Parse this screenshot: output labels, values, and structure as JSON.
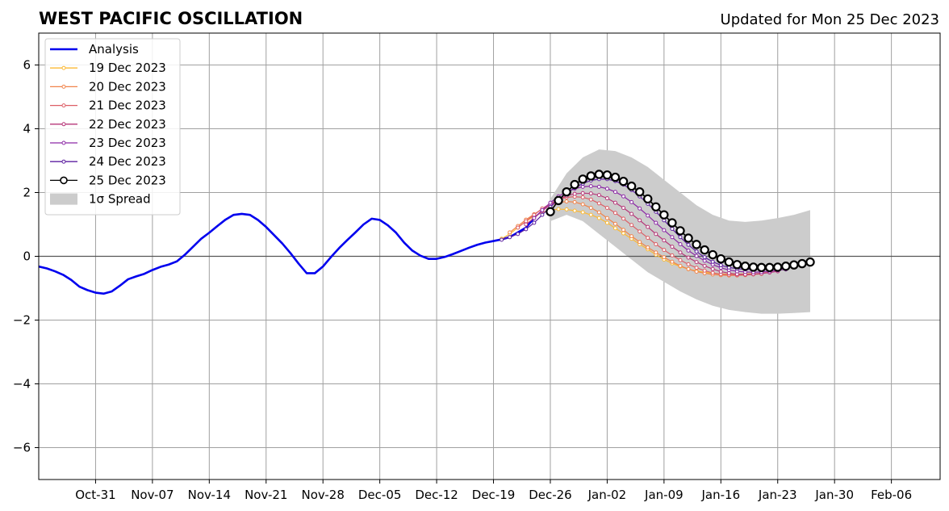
{
  "chart_data": {
    "type": "line",
    "title": "WEST PACIFIC OSCILLATION",
    "subtitle": "Updated for Mon 25 Dec 2023",
    "xlabel": "",
    "ylabel": "",
    "xlim": [
      "2023-10-24",
      "2024-02-12"
    ],
    "ylim": [
      -7,
      7
    ],
    "yticks": [
      -6,
      -4,
      -2,
      0,
      2,
      4,
      6
    ],
    "ytick_labels": [
      "−6",
      "−4",
      "−2",
      "0",
      "2",
      "4",
      "6"
    ],
    "xticks": [
      "2023-10-31",
      "2023-11-07",
      "2023-11-14",
      "2023-11-21",
      "2023-11-28",
      "2023-12-05",
      "2023-12-12",
      "2023-12-19",
      "2023-12-26",
      "2024-01-02",
      "2024-01-09",
      "2024-01-16",
      "2024-01-23",
      "2024-01-30",
      "2024-02-06"
    ],
    "xtick_labels": [
      "Oct-31",
      "Nov-07",
      "Nov-14",
      "Nov-21",
      "Nov-28",
      "Dec-05",
      "Dec-12",
      "Dec-19",
      "Dec-26",
      "Jan-02",
      "Jan-09",
      "Jan-16",
      "Jan-23",
      "Jan-30",
      "Feb-06"
    ],
    "grid": true,
    "zero_line": true,
    "legend_position": "upper-left",
    "analysis": {
      "name": "Analysis",
      "color": "#0000ee",
      "x": [
        "2023-10-26",
        "2023-10-28",
        "2023-10-30",
        "2023-11-01",
        "2023-11-03",
        "2023-11-05",
        "2023-11-07",
        "2023-11-09",
        "2023-11-11",
        "2023-11-13",
        "2023-11-15",
        "2023-11-17",
        "2023-11-19",
        "2023-11-21",
        "2023-11-23",
        "2023-11-25",
        "2023-11-27",
        "2023-11-29",
        "2023-12-01",
        "2023-12-03",
        "2023-12-05",
        "2023-12-07",
        "2023-12-09",
        "2023-12-11",
        "2023-12-13",
        "2023-12-15",
        "2023-12-17",
        "2023-12-19",
        "2023-12-21",
        "2023-12-23",
        "2023-12-25"
      ],
      "y": [
        -0.35,
        -0.6,
        -1.0,
        -1.15,
        -1.1,
        -0.7,
        -0.55,
        -0.3,
        -0.15,
        0.3,
        0.75,
        1.15,
        1.35,
        1.3,
        0.85,
        0.3,
        -0.25,
        -0.55,
        -0.3,
        0.3,
        0.95,
        1.18,
        0.85,
        0.25,
        -0.1,
        -0.05,
        0.2,
        0.4,
        0.5,
        0.8,
        1.2
      ],
      "dense_x": [
        "2023-10-24",
        "2023-10-25",
        "2023-10-26",
        "2023-10-27",
        "2023-10-28",
        "2023-10-29",
        "2023-10-30",
        "2023-10-31",
        "2023-11-01",
        "2023-11-02",
        "2023-11-03",
        "2023-11-04",
        "2023-11-05",
        "2023-11-06",
        "2023-11-07",
        "2023-11-08",
        "2023-11-09",
        "2023-11-10",
        "2023-11-11",
        "2023-11-12",
        "2023-11-13",
        "2023-11-14",
        "2023-11-15",
        "2023-11-16",
        "2023-11-17",
        "2023-11-18",
        "2023-11-19",
        "2023-11-20",
        "2023-11-21",
        "2023-11-22",
        "2023-11-23",
        "2023-11-24",
        "2023-11-25",
        "2023-11-26",
        "2023-11-27",
        "2023-11-28",
        "2023-11-29",
        "2023-11-30",
        "2023-12-01",
        "2023-12-02",
        "2023-12-03",
        "2023-12-04",
        "2023-12-05",
        "2023-12-06",
        "2023-12-07",
        "2023-12-08",
        "2023-12-09",
        "2023-12-10",
        "2023-12-11",
        "2023-12-12",
        "2023-12-13",
        "2023-12-14",
        "2023-12-15",
        "2023-12-16",
        "2023-12-17",
        "2023-12-18",
        "2023-12-19",
        "2023-12-20",
        "2023-12-21",
        "2023-12-22",
        "2023-12-23",
        "2023-12-24"
      ],
      "dense_y": [
        -0.32,
        -0.38,
        -0.47,
        -0.58,
        -0.74,
        -0.95,
        -1.06,
        -1.14,
        -1.17,
        -1.1,
        -0.92,
        -0.72,
        -0.63,
        -0.55,
        -0.43,
        -0.33,
        -0.26,
        -0.16,
        0.05,
        0.3,
        0.55,
        0.74,
        0.95,
        1.15,
        1.3,
        1.33,
        1.3,
        1.14,
        0.92,
        0.66,
        0.4,
        0.1,
        -0.23,
        -0.53,
        -0.53,
        -0.32,
        -0.02,
        0.26,
        0.51,
        0.75,
        1.0,
        1.18,
        1.14,
        0.97,
        0.74,
        0.43,
        0.18,
        0.02,
        -0.08,
        -0.08,
        -0.02,
        0.07,
        0.17,
        0.27,
        0.36,
        0.43,
        0.48,
        0.53,
        0.6,
        0.75,
        0.9,
        1.2
      ]
    },
    "forecasts": [
      {
        "name": "19 Dec 2023",
        "color": "#fbb935",
        "x": [
          "2023-12-20",
          "2023-12-21",
          "2023-12-22",
          "2023-12-23",
          "2023-12-24",
          "2023-12-25",
          "2023-12-26",
          "2023-12-27",
          "2023-12-28",
          "2023-12-29",
          "2023-12-30",
          "2023-12-31",
          "2024-01-01",
          "2024-01-02",
          "2024-01-03",
          "2024-01-04",
          "2024-01-05",
          "2024-01-06",
          "2024-01-07",
          "2024-01-08",
          "2024-01-09",
          "2024-01-10",
          "2024-01-11",
          "2024-01-12",
          "2024-01-13",
          "2024-01-14",
          "2024-01-15",
          "2024-01-16",
          "2024-01-17",
          "2024-01-18",
          "2024-01-19",
          "2024-01-20"
        ],
        "y": [
          0.55,
          0.7,
          0.9,
          1.1,
          1.25,
          1.38,
          1.45,
          1.48,
          1.47,
          1.43,
          1.38,
          1.3,
          1.2,
          1.05,
          0.88,
          0.72,
          0.55,
          0.38,
          0.22,
          0.05,
          -0.1,
          -0.22,
          -0.32,
          -0.4,
          -0.46,
          -0.5,
          -0.53,
          -0.55,
          -0.56,
          -0.56,
          -0.55,
          -0.54
        ]
      },
      {
        "name": "20 Dec 2023",
        "color": "#f1844b",
        "x": [
          "2023-12-21",
          "2023-12-22",
          "2023-12-23",
          "2023-12-24",
          "2023-12-25",
          "2023-12-26",
          "2023-12-27",
          "2023-12-28",
          "2023-12-29",
          "2023-12-30",
          "2023-12-31",
          "2024-01-01",
          "2024-01-02",
          "2024-01-03",
          "2024-01-04",
          "2024-01-05",
          "2024-01-06",
          "2024-01-07",
          "2024-01-08",
          "2024-01-09",
          "2024-01-10",
          "2024-01-11",
          "2024-01-12",
          "2024-01-13",
          "2024-01-14",
          "2024-01-15",
          "2024-01-16",
          "2024-01-17",
          "2024-01-18",
          "2024-01-19",
          "2024-01-20",
          "2024-01-21"
        ],
        "y": [
          0.75,
          0.95,
          1.15,
          1.32,
          1.48,
          1.6,
          1.68,
          1.72,
          1.7,
          1.63,
          1.52,
          1.38,
          1.2,
          1.02,
          0.83,
          0.63,
          0.45,
          0.28,
          0.12,
          -0.03,
          -0.17,
          -0.3,
          -0.4,
          -0.48,
          -0.53,
          -0.57,
          -0.59,
          -0.6,
          -0.6,
          -0.59,
          -0.57,
          -0.55
        ]
      },
      {
        "name": "21 Dec 2023",
        "color": "#dd5e66",
        "x": [
          "2023-12-22",
          "2023-12-23",
          "2023-12-24",
          "2023-12-25",
          "2023-12-26",
          "2023-12-27",
          "2023-12-28",
          "2023-12-29",
          "2023-12-30",
          "2023-12-31",
          "2024-01-01",
          "2024-01-02",
          "2024-01-03",
          "2024-01-04",
          "2024-01-05",
          "2024-01-06",
          "2024-01-07",
          "2024-01-08",
          "2024-01-09",
          "2024-01-10",
          "2024-01-11",
          "2024-01-12",
          "2024-01-13",
          "2024-01-14",
          "2024-01-15",
          "2024-01-16",
          "2024-01-17",
          "2024-01-18",
          "2024-01-19",
          "2024-01-20",
          "2024-01-21",
          "2024-01-22"
        ],
        "y": [
          0.9,
          1.1,
          1.3,
          1.5,
          1.65,
          1.78,
          1.85,
          1.87,
          1.85,
          1.78,
          1.66,
          1.52,
          1.36,
          1.18,
          0.98,
          0.78,
          0.58,
          0.38,
          0.2,
          0.03,
          -0.12,
          -0.25,
          -0.36,
          -0.45,
          -0.52,
          -0.56,
          -0.58,
          -0.59,
          -0.58,
          -0.56,
          -0.53,
          -0.5
        ]
      },
      {
        "name": "22 Dec 2023",
        "color": "#b73779",
        "x": [
          "2023-12-23",
          "2023-12-24",
          "2023-12-25",
          "2023-12-26",
          "2023-12-27",
          "2023-12-28",
          "2023-12-29",
          "2023-12-30",
          "2023-12-31",
          "2024-01-01",
          "2024-01-02",
          "2024-01-03",
          "2024-01-04",
          "2024-01-05",
          "2024-01-06",
          "2024-01-07",
          "2024-01-08",
          "2024-01-09",
          "2024-01-10",
          "2024-01-11",
          "2024-01-12",
          "2024-01-13",
          "2024-01-14",
          "2024-01-15",
          "2024-01-16",
          "2024-01-17",
          "2024-01-18",
          "2024-01-19",
          "2024-01-20",
          "2024-01-21",
          "2024-01-22",
          "2024-01-23"
        ],
        "y": [
          1.0,
          1.2,
          1.42,
          1.62,
          1.78,
          1.9,
          1.96,
          1.98,
          1.97,
          1.92,
          1.82,
          1.68,
          1.52,
          1.33,
          1.13,
          0.92,
          0.7,
          0.5,
          0.3,
          0.12,
          -0.04,
          -0.18,
          -0.3,
          -0.4,
          -0.48,
          -0.53,
          -0.56,
          -0.57,
          -0.56,
          -0.54,
          -0.51,
          -0.47
        ]
      },
      {
        "name": "23 Dec 2023",
        "color": "#8c29a6",
        "x": [
          "2023-12-24",
          "2023-12-25",
          "2023-12-26",
          "2023-12-27",
          "2023-12-28",
          "2023-12-29",
          "2023-12-30",
          "2023-12-31",
          "2024-01-01",
          "2024-01-02",
          "2024-01-03",
          "2024-01-04",
          "2024-01-05",
          "2024-01-06",
          "2024-01-07",
          "2024-01-08",
          "2024-01-09",
          "2024-01-10",
          "2024-01-11",
          "2024-01-12",
          "2024-01-13",
          "2024-01-14",
          "2024-01-15",
          "2024-01-16",
          "2024-01-17",
          "2024-01-18",
          "2024-01-19",
          "2024-01-20",
          "2024-01-21",
          "2024-01-22",
          "2024-01-23",
          "2024-01-24"
        ],
        "y": [
          1.2,
          1.45,
          1.68,
          1.88,
          2.02,
          2.12,
          2.18,
          2.2,
          2.18,
          2.12,
          2.02,
          1.88,
          1.7,
          1.5,
          1.28,
          1.05,
          0.82,
          0.6,
          0.38,
          0.18,
          0.01,
          -0.14,
          -0.26,
          -0.36,
          -0.43,
          -0.47,
          -0.49,
          -0.5,
          -0.49,
          -0.47,
          -0.44,
          -0.41
        ]
      },
      {
        "name": "24 Dec 2023",
        "color": "#5c1fa0",
        "x": [
          "2023-12-20",
          "2023-12-21",
          "2023-12-22",
          "2023-12-23",
          "2023-12-24",
          "2023-12-25",
          "2023-12-26",
          "2023-12-27",
          "2023-12-28",
          "2023-12-29",
          "2023-12-30",
          "2023-12-31",
          "2024-01-01",
          "2024-01-02",
          "2024-01-03",
          "2024-01-04",
          "2024-01-05",
          "2024-01-06",
          "2024-01-07",
          "2024-01-08",
          "2024-01-09",
          "2024-01-10",
          "2024-01-11",
          "2024-01-12",
          "2024-01-13",
          "2024-01-14",
          "2024-01-15",
          "2024-01-16",
          "2024-01-17",
          "2024-01-18",
          "2024-01-19",
          "2024-01-20",
          "2024-01-21",
          "2024-01-22",
          "2024-01-23",
          "2024-01-24",
          "2024-01-25"
        ],
        "y": [
          0.52,
          0.6,
          0.7,
          0.85,
          1.05,
          1.3,
          1.55,
          1.78,
          1.98,
          2.15,
          2.28,
          2.38,
          2.42,
          2.42,
          2.36,
          2.25,
          2.08,
          1.88,
          1.65,
          1.4,
          1.13,
          0.86,
          0.6,
          0.36,
          0.15,
          -0.03,
          -0.17,
          -0.28,
          -0.35,
          -0.39,
          -0.41,
          -0.41,
          -0.4,
          -0.38,
          -0.35,
          -0.32,
          -0.28
        ]
      },
      {
        "name": "25 Dec 2023",
        "color": "#000000",
        "x": [
          "2023-12-26",
          "2023-12-27",
          "2023-12-28",
          "2023-12-29",
          "2023-12-30",
          "2023-12-31",
          "2024-01-01",
          "2024-01-02",
          "2024-01-03",
          "2024-01-04",
          "2024-01-05",
          "2024-01-06",
          "2024-01-07",
          "2024-01-08",
          "2024-01-09",
          "2024-01-10",
          "2024-01-11",
          "2024-01-12",
          "2024-01-13",
          "2024-01-14",
          "2024-01-15",
          "2024-01-16",
          "2024-01-17",
          "2024-01-18",
          "2024-01-19",
          "2024-01-20",
          "2024-01-21",
          "2024-01-22",
          "2024-01-23",
          "2024-01-24",
          "2024-01-25",
          "2024-01-26",
          "2024-01-27"
        ],
        "y": [
          1.4,
          1.75,
          2.02,
          2.25,
          2.42,
          2.52,
          2.57,
          2.55,
          2.48,
          2.35,
          2.2,
          2.02,
          1.8,
          1.55,
          1.3,
          1.05,
          0.8,
          0.57,
          0.37,
          0.2,
          0.05,
          -0.08,
          -0.18,
          -0.26,
          -0.31,
          -0.34,
          -0.35,
          -0.35,
          -0.34,
          -0.31,
          -0.27,
          -0.23,
          -0.18
        ]
      }
    ],
    "spread": {
      "name": "1σ Spread",
      "color": "#cccccc",
      "x": [
        "2023-12-26",
        "2023-12-28",
        "2023-12-30",
        "2024-01-01",
        "2024-01-03",
        "2024-01-05",
        "2024-01-07",
        "2024-01-09",
        "2024-01-11",
        "2024-01-13",
        "2024-01-15",
        "2024-01-17",
        "2024-01-19",
        "2024-01-21",
        "2024-01-23",
        "2024-01-25",
        "2024-01-27"
      ],
      "upper": [
        1.8,
        2.6,
        3.1,
        3.35,
        3.3,
        3.1,
        2.8,
        2.4,
        2.0,
        1.6,
        1.3,
        1.12,
        1.08,
        1.12,
        1.2,
        1.3,
        1.45
      ],
      "lower": [
        1.1,
        1.3,
        1.1,
        0.7,
        0.3,
        -0.1,
        -0.5,
        -0.8,
        -1.1,
        -1.35,
        -1.55,
        -1.68,
        -1.75,
        -1.8,
        -1.8,
        -1.78,
        -1.75
      ]
    }
  }
}
